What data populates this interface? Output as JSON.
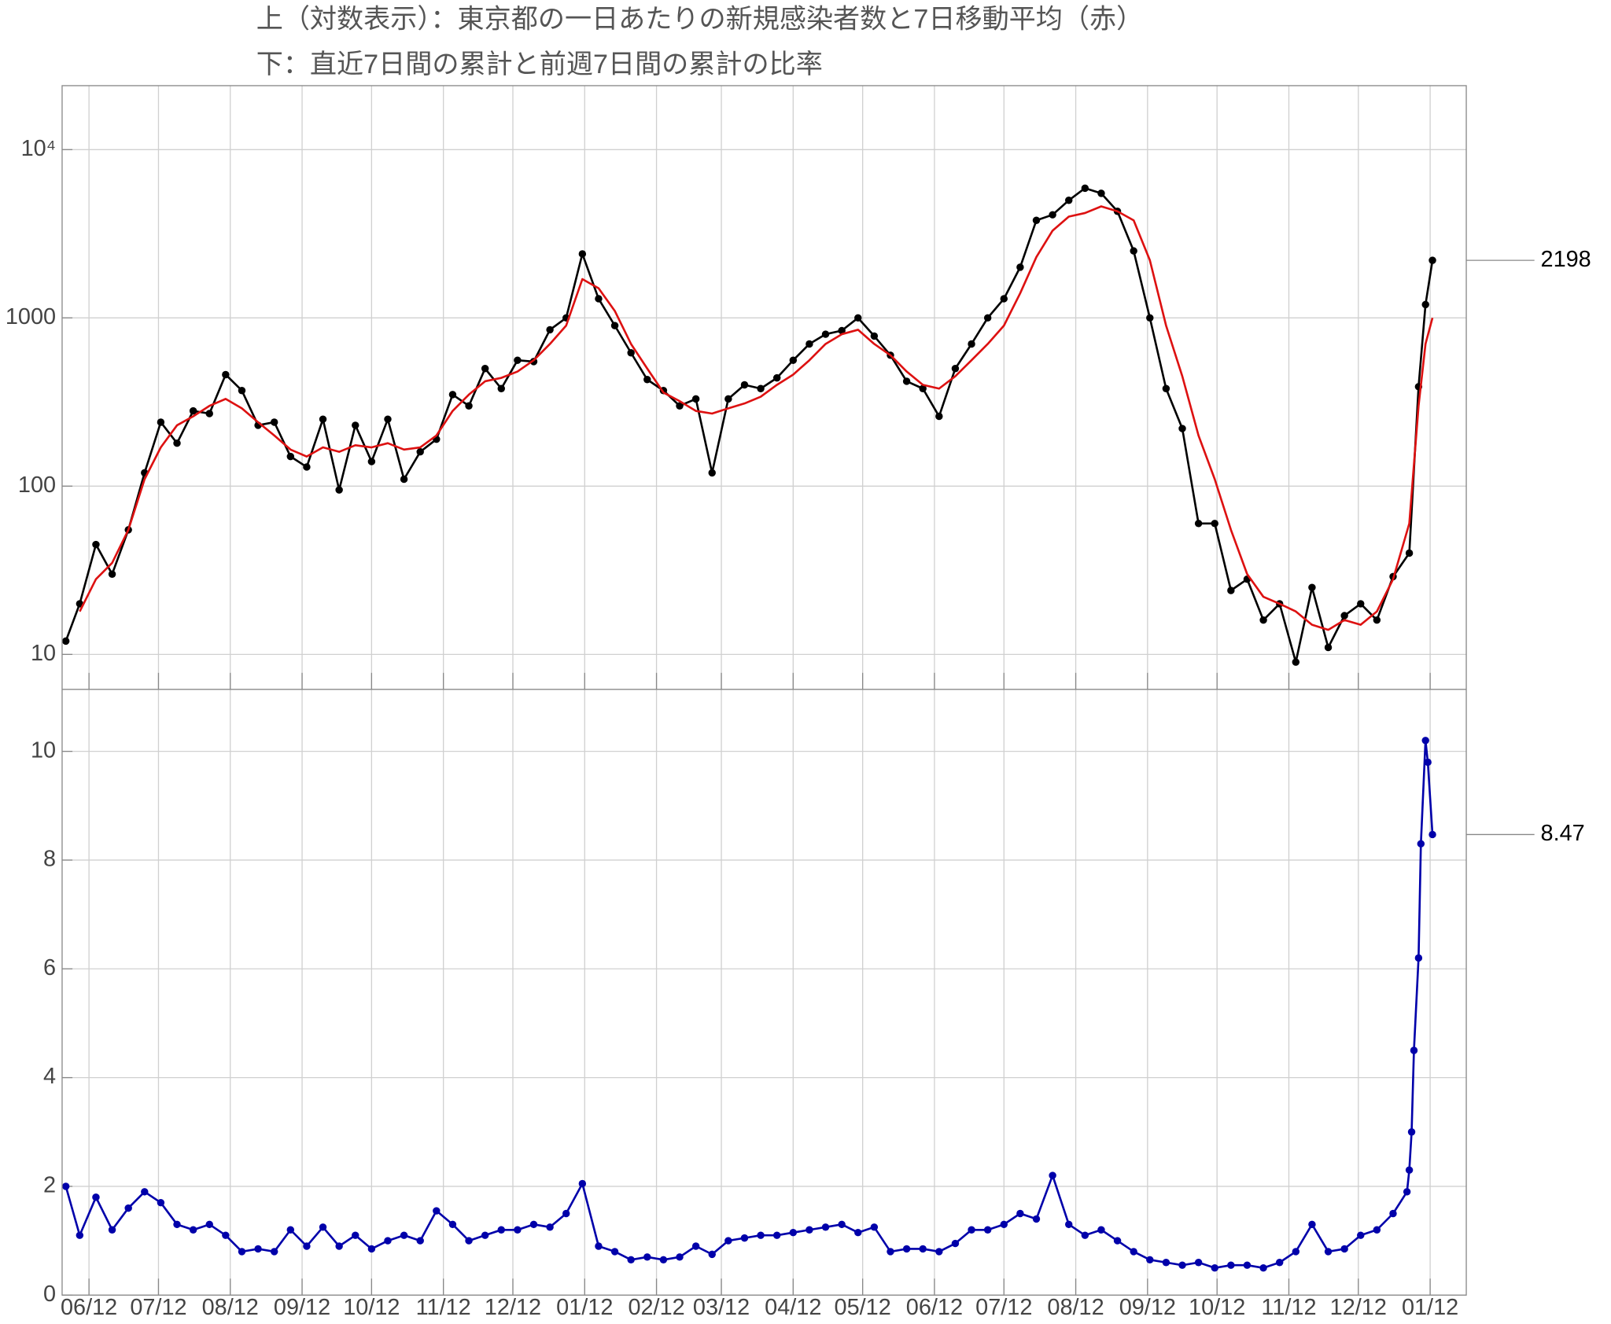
{
  "title": [
    "上（対数表示）：東京都の一日あたりの新規感染者数と7日移動平均（赤）",
    "下：直近7日間の累計と前週7日間の累計の比率"
  ],
  "chart_data": [
    {
      "type": "line",
      "yscale": "log",
      "grid": true,
      "xlim": [
        -11.6,
        594.6
      ],
      "ylim": [
        6.2,
        24000
      ],
      "yticks": [
        10,
        100,
        1000,
        {
          "value": 10000,
          "label": "10⁴"
        }
      ],
      "series": [
        {
          "color": "#000000",
          "markers": true,
          "label_last": true,
          "x": [
            -10,
            -4,
            3,
            10,
            17,
            24,
            31,
            38,
            45,
            52,
            59,
            66,
            73,
            80,
            87,
            94,
            101,
            108,
            115,
            122,
            129,
            136,
            143,
            150,
            157,
            164,
            171,
            178,
            185,
            192,
            199,
            206,
            213,
            220,
            227,
            234,
            241,
            248,
            255,
            262,
            269,
            276,
            283,
            290,
            297,
            304,
            311,
            318,
            325,
            332,
            339,
            346,
            353,
            360,
            367,
            374,
            381,
            388,
            395,
            402,
            409,
            416,
            423,
            430,
            437,
            444,
            451,
            458,
            465,
            472,
            479,
            486,
            493,
            500,
            507,
            514,
            521,
            528,
            535,
            542,
            549,
            556,
            563,
            570,
            574,
            577,
            580
          ],
          "values": [
            12,
            20,
            45,
            30,
            55,
            120,
            240,
            180,
            280,
            270,
            460,
            370,
            230,
            240,
            150,
            130,
            250,
            95,
            230,
            140,
            250,
            110,
            160,
            190,
            350,
            300,
            500,
            380,
            560,
            550,
            850,
            1000,
            2400,
            1300,
            900,
            620,
            430,
            370,
            300,
            330,
            120,
            330,
            400,
            380,
            440,
            560,
            700,
            800,
            840,
            1000,
            780,
            600,
            420,
            380,
            260,
            500,
            700,
            1000,
            1300,
            2000,
            3800,
            4100,
            5000,
            5900,
            5500,
            4300,
            2500,
            1000,
            380,
            220,
            60,
            60,
            24,
            28,
            16,
            20,
            9,
            25,
            11,
            17,
            20,
            16,
            29,
            40,
            390,
            1200,
            2198
          ]
        },
        {
          "color": "#dd1111",
          "markers": false,
          "label_last": false,
          "x": [
            -10,
            -4,
            3,
            10,
            17,
            24,
            31,
            38,
            45,
            52,
            59,
            66,
            73,
            80,
            87,
            94,
            101,
            108,
            115,
            122,
            129,
            136,
            143,
            150,
            157,
            164,
            171,
            178,
            185,
            192,
            199,
            206,
            213,
            220,
            227,
            234,
            241,
            248,
            255,
            262,
            269,
            276,
            283,
            290,
            297,
            304,
            311,
            318,
            325,
            332,
            339,
            346,
            353,
            360,
            367,
            374,
            381,
            388,
            395,
            402,
            409,
            416,
            423,
            430,
            437,
            444,
            451,
            458,
            465,
            472,
            479,
            486,
            493,
            500,
            507,
            514,
            521,
            528,
            535,
            542,
            549,
            556,
            563,
            570,
            574,
            577,
            580
          ],
          "values": [
            null,
            18,
            28,
            35,
            55,
            110,
            170,
            230,
            260,
            300,
            330,
            290,
            240,
            200,
            165,
            150,
            170,
            160,
            175,
            170,
            180,
            165,
            170,
            200,
            280,
            350,
            420,
            440,
            480,
            560,
            700,
            900,
            1700,
            1500,
            1100,
            700,
            500,
            360,
            320,
            280,
            270,
            290,
            310,
            340,
            400,
            460,
            560,
            700,
            800,
            850,
            700,
            600,
            480,
            400,
            380,
            450,
            560,
            700,
            900,
            1400,
            2300,
            3300,
            4000,
            4200,
            4600,
            4300,
            3800,
            2200,
            900,
            450,
            200,
            110,
            55,
            30,
            22,
            20,
            18,
            15,
            14,
            16,
            15,
            18,
            28,
            60,
            300,
            700,
            1000
          ]
        }
      ]
    },
    {
      "type": "line",
      "yscale": "linear",
      "grid": true,
      "xlim": [
        -11.6,
        594.6
      ],
      "ylim": [
        0,
        11.14
      ],
      "yticks": [
        0,
        2,
        4,
        6,
        8,
        10
      ],
      "xticks": [
        {
          "value": 0,
          "label": "06/12"
        },
        {
          "value": 30,
          "label": "07/12"
        },
        {
          "value": 61,
          "label": "08/12"
        },
        {
          "value": 92,
          "label": "09/12"
        },
        {
          "value": 122,
          "label": "10/12"
        },
        {
          "value": 153,
          "label": "11/12"
        },
        {
          "value": 183,
          "label": "12/12"
        },
        {
          "value": 214,
          "label": "01/12"
        },
        {
          "value": 245,
          "label": "02/12"
        },
        {
          "value": 273,
          "label": "03/12"
        },
        {
          "value": 304,
          "label": "04/12"
        },
        {
          "value": 334,
          "label": "05/12"
        },
        {
          "value": 365,
          "label": "06/12"
        },
        {
          "value": 395,
          "label": "07/12"
        },
        {
          "value": 426,
          "label": "08/12"
        },
        {
          "value": 457,
          "label": "09/12"
        },
        {
          "value": 487,
          "label": "10/12"
        },
        {
          "value": 518,
          "label": "11/12"
        },
        {
          "value": 548,
          "label": "12/12"
        },
        {
          "value": 579,
          "label": "01/12"
        }
      ],
      "series": [
        {
          "color": "#0000aa",
          "markers": true,
          "label_last": true,
          "x": [
            -10,
            -4,
            3,
            10,
            17,
            24,
            31,
            38,
            45,
            52,
            59,
            66,
            73,
            80,
            87,
            94,
            101,
            108,
            115,
            122,
            129,
            136,
            143,
            150,
            157,
            164,
            171,
            178,
            185,
            192,
            199,
            206,
            213,
            220,
            227,
            234,
            241,
            248,
            255,
            262,
            269,
            276,
            283,
            290,
            297,
            304,
            311,
            318,
            325,
            332,
            339,
            346,
            353,
            360,
            367,
            374,
            381,
            388,
            395,
            402,
            409,
            416,
            423,
            430,
            437,
            444,
            451,
            458,
            465,
            472,
            479,
            486,
            493,
            500,
            507,
            514,
            521,
            528,
            535,
            542,
            549,
            556,
            563,
            569,
            570,
            571,
            572,
            574,
            575,
            577,
            578,
            580
          ],
          "values": [
            2.0,
            1.1,
            1.8,
            1.2,
            1.6,
            1.9,
            1.7,
            1.3,
            1.2,
            1.3,
            1.1,
            0.8,
            0.85,
            0.8,
            1.2,
            0.9,
            1.25,
            0.9,
            1.1,
            0.85,
            1.0,
            1.1,
            1.0,
            1.55,
            1.3,
            1.0,
            1.1,
            1.2,
            1.2,
            1.3,
            1.25,
            1.5,
            2.05,
            0.9,
            0.8,
            0.65,
            0.7,
            0.65,
            0.7,
            0.9,
            0.75,
            1.0,
            1.05,
            1.1,
            1.1,
            1.15,
            1.2,
            1.25,
            1.3,
            1.15,
            1.25,
            0.8,
            0.85,
            0.85,
            0.8,
            0.95,
            1.2,
            1.2,
            1.3,
            1.5,
            1.4,
            2.2,
            1.3,
            1.1,
            1.2,
            1.0,
            0.8,
            0.65,
            0.6,
            0.55,
            0.6,
            0.5,
            0.55,
            0.55,
            0.5,
            0.6,
            0.8,
            1.3,
            0.8,
            0.85,
            1.1,
            1.2,
            1.5,
            1.9,
            2.3,
            3.0,
            4.5,
            6.2,
            8.3,
            10.2,
            9.8,
            8.47
          ]
        }
      ]
    }
  ]
}
